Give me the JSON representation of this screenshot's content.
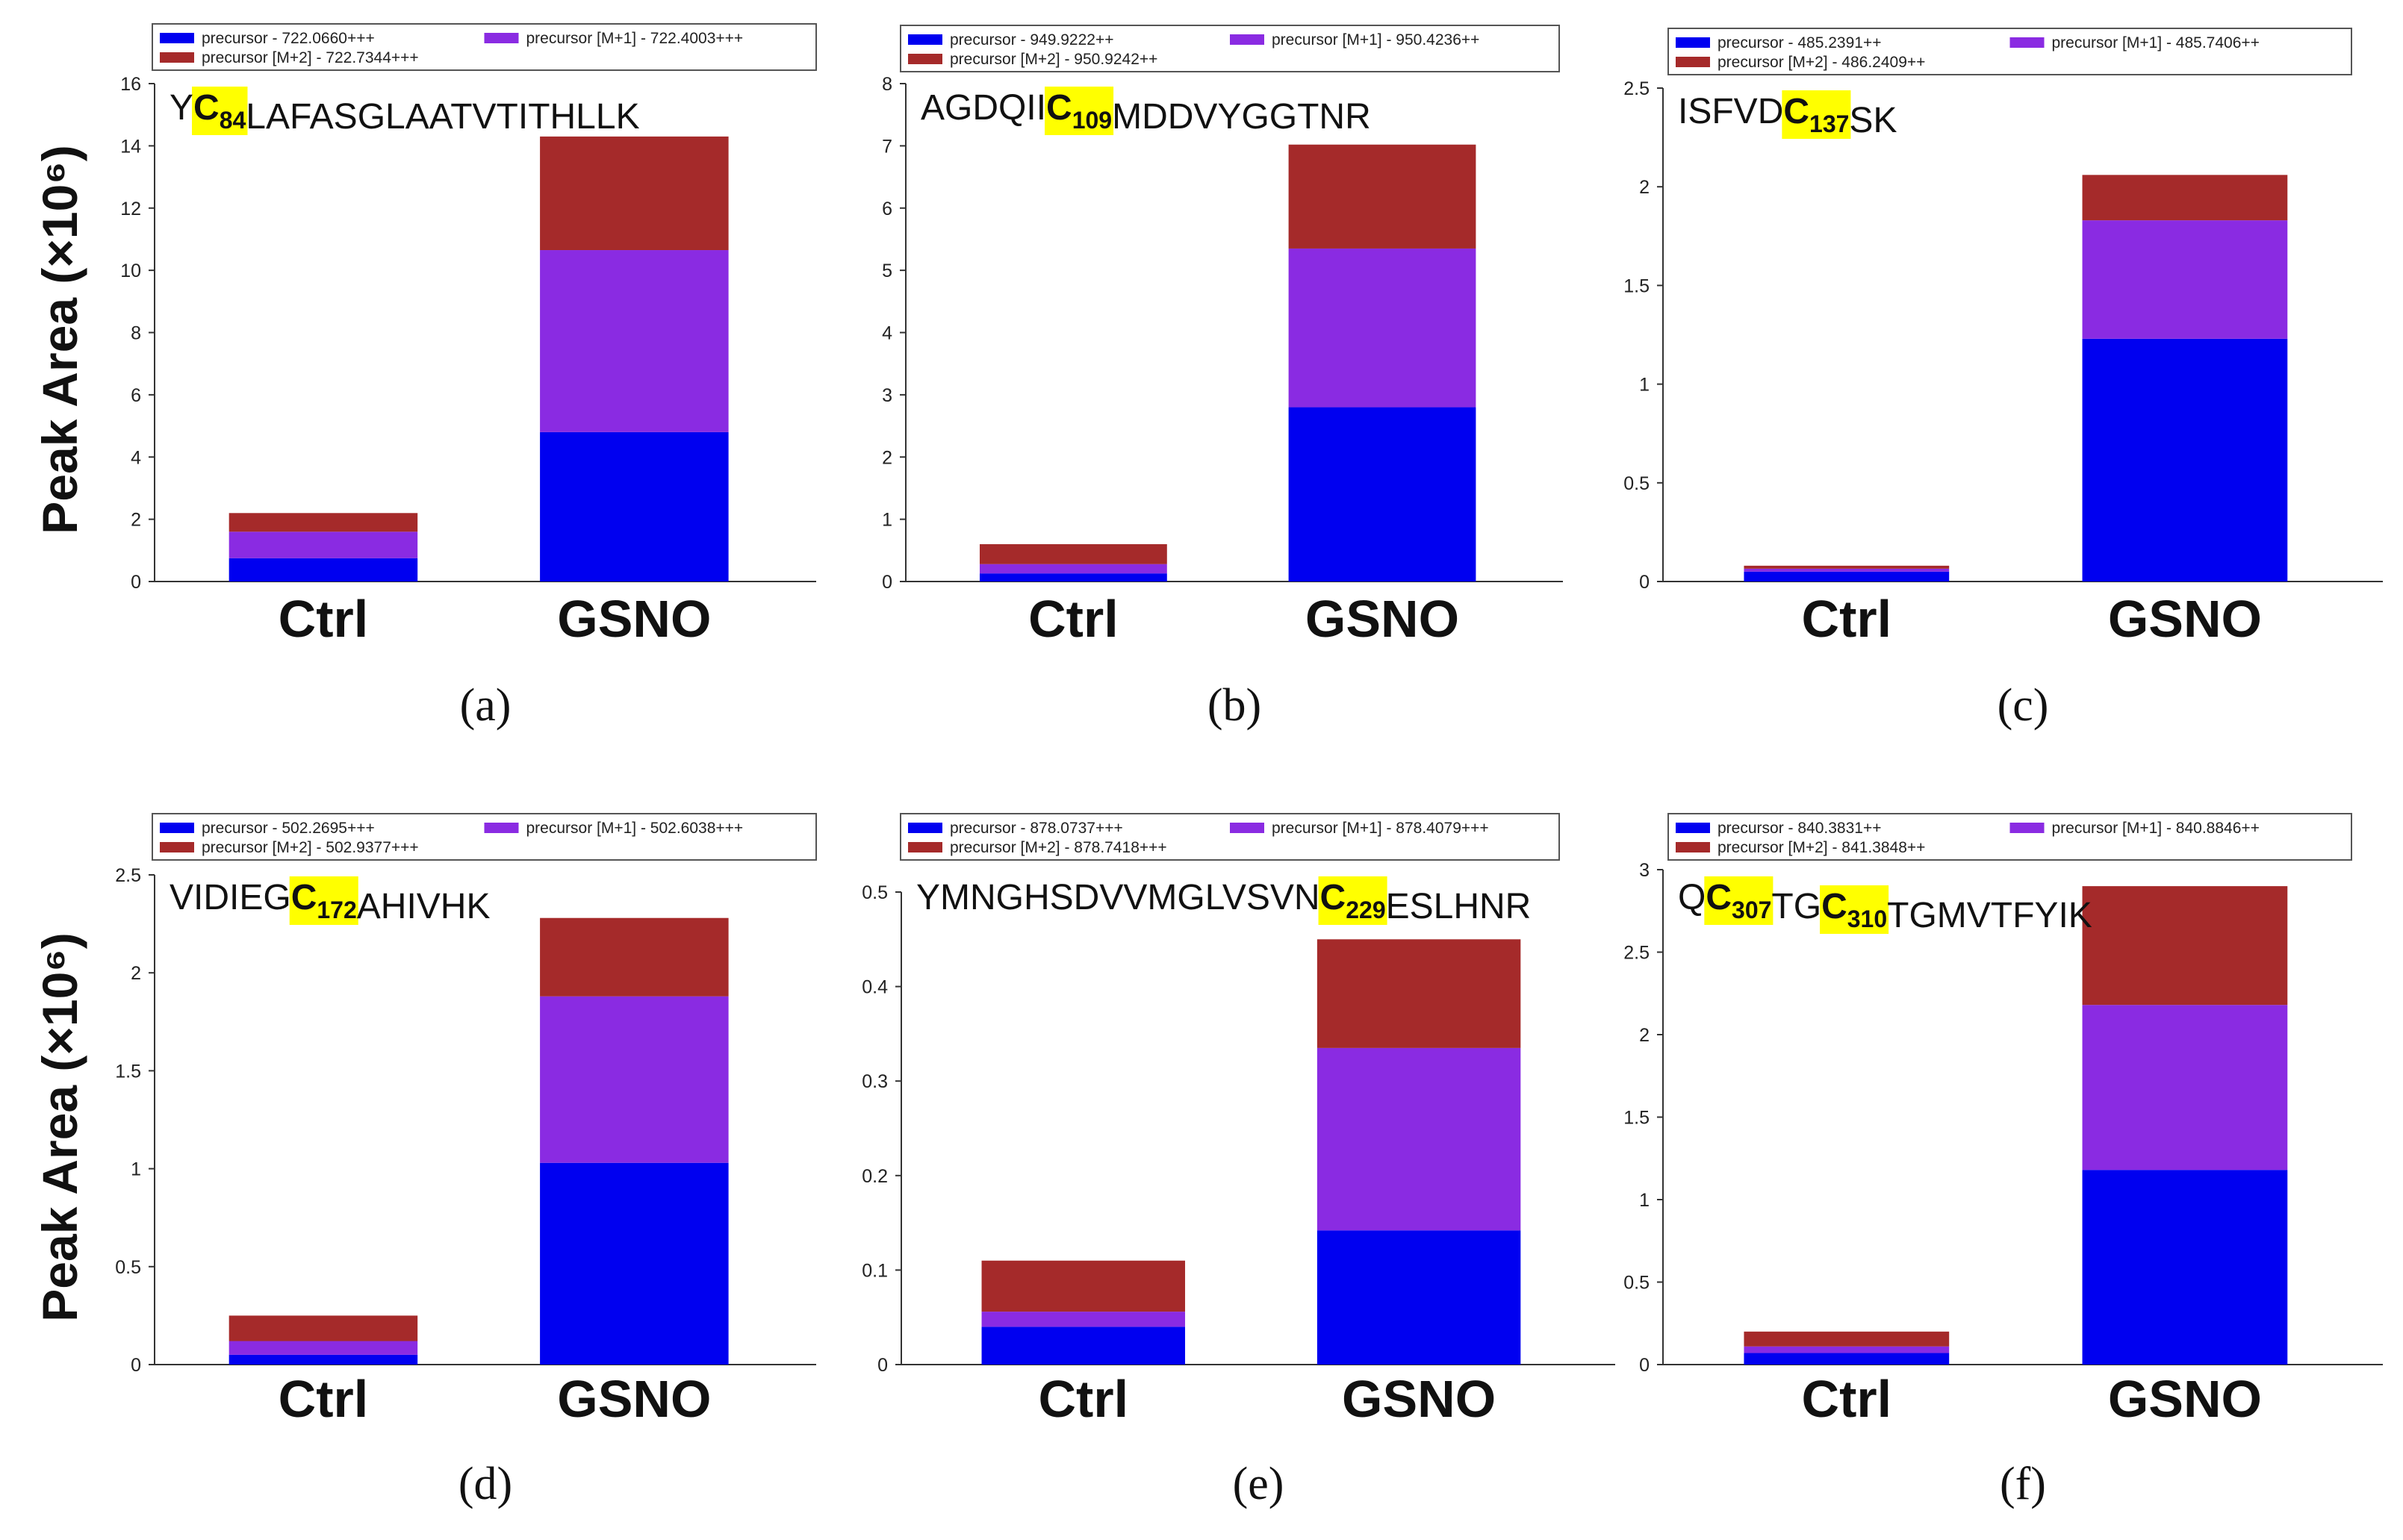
{
  "y_axis_label": "Peak Area (×10⁶)",
  "colors": {
    "precursor": "#0000f0",
    "m1": "#8a2be2",
    "m2": "#a52a2a",
    "highlight": "#ffff00"
  },
  "chart_data": [
    {
      "type": "bar",
      "panel": "(a)",
      "sequence": [
        {
          "t": "Y"
        },
        {
          "t": "C",
          "sub": "84",
          "hl": true
        },
        {
          "t": "LAFASGLAATVTITHLLK"
        }
      ],
      "categories": [
        "Ctrl",
        "GSNO"
      ],
      "ylim": [
        0,
        16
      ],
      "ticks": [
        0,
        2,
        4,
        6,
        8,
        10,
        12,
        14,
        16
      ],
      "legend": [
        "precursor - 722.0660+++",
        "precursor [M+1] - 722.4003+++",
        "precursor [M+2] - 722.7344+++"
      ],
      "series": [
        {
          "name": "precursor",
          "values": [
            0.75,
            4.8
          ]
        },
        {
          "name": "precursor [M+1]",
          "values": [
            0.85,
            5.85
          ]
        },
        {
          "name": "precursor [M+2]",
          "values": [
            0.6,
            3.65
          ]
        }
      ]
    },
    {
      "type": "bar",
      "panel": "(b)",
      "sequence": [
        {
          "t": "AGDQII"
        },
        {
          "t": "C",
          "sub": "109",
          "hl": true
        },
        {
          "t": "MDDVYGGTNR"
        }
      ],
      "categories": [
        "Ctrl",
        "GSNO"
      ],
      "ylim": [
        0,
        8
      ],
      "ticks": [
        0,
        1,
        2,
        3,
        4,
        5,
        6,
        7,
        8
      ],
      "legend": [
        "precursor - 949.9222++",
        "precursor [M+1] - 950.4236++",
        "precursor [M+2] - 950.9242++"
      ],
      "series": [
        {
          "name": "precursor",
          "values": [
            0.13,
            2.8
          ]
        },
        {
          "name": "precursor [M+1]",
          "values": [
            0.15,
            2.55
          ]
        },
        {
          "name": "precursor [M+2]",
          "values": [
            0.32,
            1.67
          ]
        }
      ]
    },
    {
      "type": "bar",
      "panel": "(c)",
      "sequence": [
        {
          "t": "ISFVD"
        },
        {
          "t": "C",
          "sub": "137",
          "hl": true
        },
        {
          "t": "SK"
        }
      ],
      "categories": [
        "Ctrl",
        "GSNO"
      ],
      "ylim": [
        0,
        2.5
      ],
      "ticks": [
        0,
        0.5,
        1,
        1.5,
        2,
        2.5
      ],
      "legend": [
        "precursor - 485.2391++",
        "precursor [M+1] - 485.7406++",
        "precursor [M+2] - 486.2409++"
      ],
      "series": [
        {
          "name": "precursor",
          "values": [
            0.05,
            1.23
          ]
        },
        {
          "name": "precursor [M+1]",
          "values": [
            0.015,
            0.6
          ]
        },
        {
          "name": "precursor [M+2]",
          "values": [
            0.015,
            0.23
          ]
        }
      ]
    },
    {
      "type": "bar",
      "panel": "(d)",
      "sequence": [
        {
          "t": "VIDIEG"
        },
        {
          "t": "C",
          "sub": "172",
          "hl": true
        },
        {
          "t": "AHIVHK"
        }
      ],
      "categories": [
        "Ctrl",
        "GSNO"
      ],
      "ylim": [
        0,
        2.5
      ],
      "ticks": [
        0,
        0.5,
        1,
        1.5,
        2,
        2.5
      ],
      "legend": [
        "precursor - 502.2695+++",
        "precursor [M+1] - 502.6038+++",
        "precursor [M+2] - 502.9377+++"
      ],
      "series": [
        {
          "name": "precursor",
          "values": [
            0.05,
            1.03
          ]
        },
        {
          "name": "precursor [M+1]",
          "values": [
            0.07,
            0.85
          ]
        },
        {
          "name": "precursor [M+2]",
          "values": [
            0.13,
            0.4
          ]
        }
      ]
    },
    {
      "type": "bar",
      "panel": "(e)",
      "sequence": [
        {
          "t": "YMNGHSDVVMGLVSVN"
        },
        {
          "t": "C",
          "sub": "229",
          "hl": true
        },
        {
          "t": "ESLHNR"
        }
      ],
      "categories": [
        "Ctrl",
        "GSNO"
      ],
      "ylim": [
        0,
        0.5
      ],
      "ticks": [
        0,
        0.1,
        0.2,
        0.3,
        0.4,
        0.5
      ],
      "legend": [
        "precursor - 878.0737+++",
        "precursor [M+1] - 878.4079+++",
        "precursor [M+2] - 878.7418+++"
      ],
      "series": [
        {
          "name": "precursor",
          "values": [
            0.04,
            0.142
          ]
        },
        {
          "name": "precursor [M+1]",
          "values": [
            0.016,
            0.193
          ]
        },
        {
          "name": "precursor [M+2]",
          "values": [
            0.054,
            0.115
          ]
        }
      ]
    },
    {
      "type": "bar",
      "panel": "(f)",
      "sequence": [
        {
          "t": "Q"
        },
        {
          "t": "C",
          "sub": "307",
          "hl": true
        },
        {
          "t": "TG"
        },
        {
          "t": "C",
          "sub": "310",
          "hl": true
        },
        {
          "t": "TGMVTFYIK"
        }
      ],
      "categories": [
        "Ctrl",
        "GSNO"
      ],
      "ylim": [
        0,
        3
      ],
      "ticks": [
        0,
        0.5,
        1,
        1.5,
        2,
        2.5,
        3
      ],
      "legend": [
        "precursor - 840.3831++",
        "precursor [M+1] - 840.8846++",
        "precursor [M+2] - 841.3848++"
      ],
      "series": [
        {
          "name": "precursor",
          "values": [
            0.07,
            1.18
          ]
        },
        {
          "name": "precursor [M+1]",
          "values": [
            0.04,
            1.0
          ]
        },
        {
          "name": "precursor [M+2]",
          "values": [
            0.09,
            0.72
          ]
        }
      ]
    }
  ]
}
